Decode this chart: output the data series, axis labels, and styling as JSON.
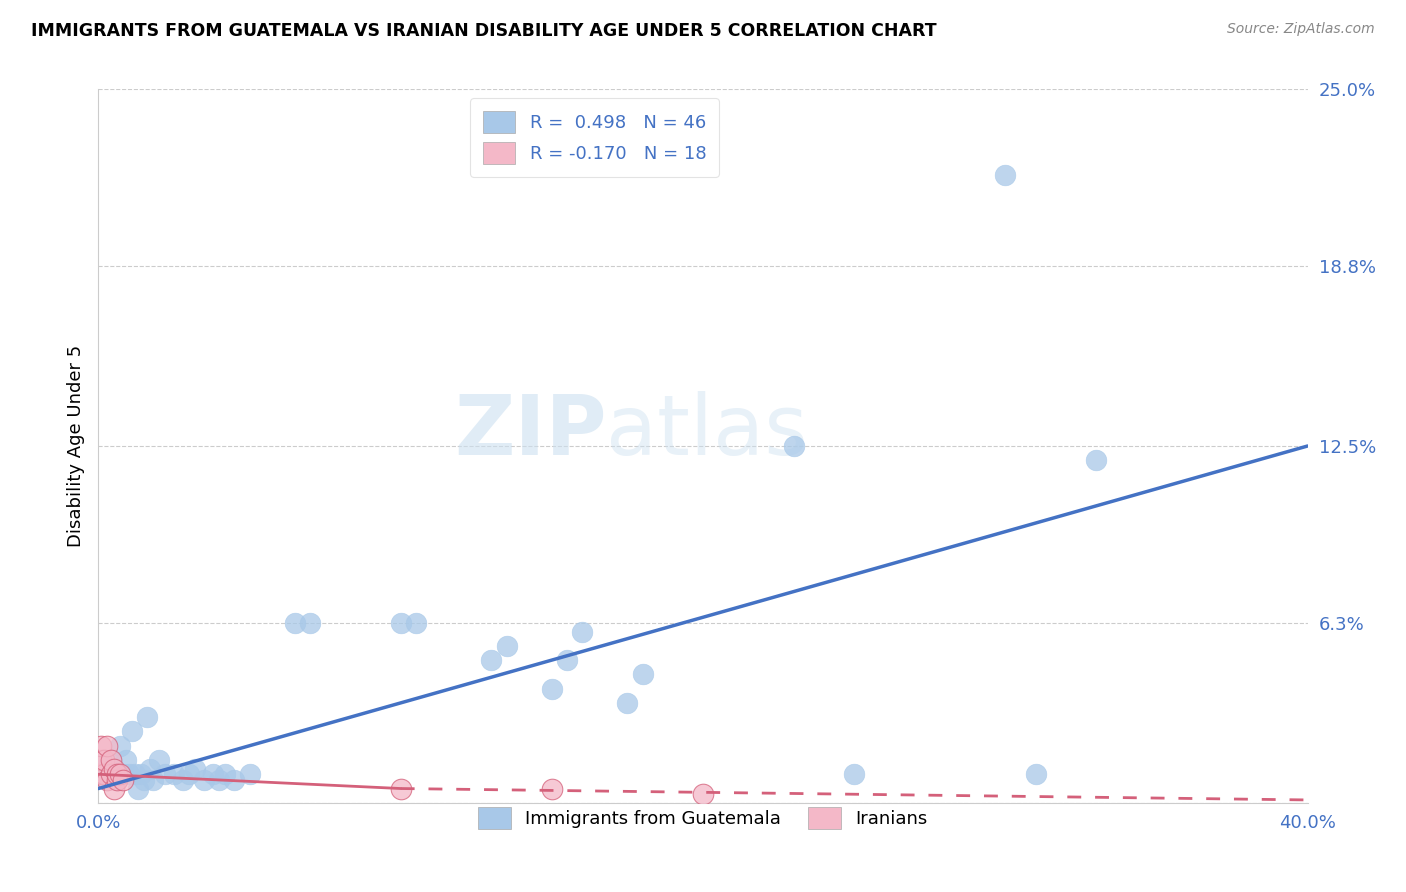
{
  "title": "IMMIGRANTS FROM GUATEMALA VS IRANIAN DISABILITY AGE UNDER 5 CORRELATION CHART",
  "source": "Source: ZipAtlas.com",
  "ylabel": "Disability Age Under 5",
  "xlim": [
    0.0,
    0.4
  ],
  "ylim": [
    0.0,
    0.25
  ],
  "ytick_positions": [
    0.0,
    0.063,
    0.125,
    0.188,
    0.25
  ],
  "ytick_labels": [
    "",
    "6.3%",
    "12.5%",
    "18.8%",
    "25.0%"
  ],
  "legend_r1": "R =  0.498",
  "legend_n1": "N = 46",
  "legend_r2": "R = -0.170",
  "legend_n2": "N = 18",
  "blue_color": "#a8c8e8",
  "blue_dark": "#4472c4",
  "pink_color": "#f4b8c8",
  "pink_dark": "#d4607a",
  "watermark_zip": "ZIP",
  "watermark_atlas": "atlas",
  "guatemala_points": [
    [
      0.001,
      0.01
    ],
    [
      0.002,
      0.012
    ],
    [
      0.003,
      0.008
    ],
    [
      0.004,
      0.015
    ],
    [
      0.005,
      0.01
    ],
    [
      0.006,
      0.008
    ],
    [
      0.007,
      0.02
    ],
    [
      0.008,
      0.01
    ],
    [
      0.009,
      0.015
    ],
    [
      0.01,
      0.01
    ],
    [
      0.011,
      0.025
    ],
    [
      0.012,
      0.01
    ],
    [
      0.013,
      0.005
    ],
    [
      0.014,
      0.01
    ],
    [
      0.015,
      0.008
    ],
    [
      0.016,
      0.03
    ],
    [
      0.017,
      0.012
    ],
    [
      0.018,
      0.008
    ],
    [
      0.02,
      0.015
    ],
    [
      0.022,
      0.01
    ],
    [
      0.025,
      0.01
    ],
    [
      0.028,
      0.008
    ],
    [
      0.03,
      0.01
    ],
    [
      0.032,
      0.012
    ],
    [
      0.035,
      0.008
    ],
    [
      0.038,
      0.01
    ],
    [
      0.04,
      0.008
    ],
    [
      0.042,
      0.01
    ],
    [
      0.045,
      0.008
    ],
    [
      0.05,
      0.01
    ],
    [
      0.065,
      0.063
    ],
    [
      0.07,
      0.063
    ],
    [
      0.1,
      0.063
    ],
    [
      0.105,
      0.063
    ],
    [
      0.13,
      0.05
    ],
    [
      0.135,
      0.055
    ],
    [
      0.15,
      0.04
    ],
    [
      0.155,
      0.05
    ],
    [
      0.16,
      0.06
    ],
    [
      0.175,
      0.035
    ],
    [
      0.18,
      0.045
    ],
    [
      0.23,
      0.125
    ],
    [
      0.25,
      0.01
    ],
    [
      0.3,
      0.22
    ],
    [
      0.31,
      0.01
    ],
    [
      0.33,
      0.12
    ]
  ],
  "iranian_points": [
    [
      0.0,
      0.01
    ],
    [
      0.001,
      0.015
    ],
    [
      0.001,
      0.02
    ],
    [
      0.002,
      0.01
    ],
    [
      0.002,
      0.015
    ],
    [
      0.003,
      0.008
    ],
    [
      0.003,
      0.02
    ],
    [
      0.004,
      0.01
    ],
    [
      0.004,
      0.015
    ],
    [
      0.005,
      0.005
    ],
    [
      0.005,
      0.012
    ],
    [
      0.006,
      0.008
    ],
    [
      0.006,
      0.01
    ],
    [
      0.007,
      0.01
    ],
    [
      0.008,
      0.008
    ],
    [
      0.1,
      0.005
    ],
    [
      0.15,
      0.005
    ],
    [
      0.2,
      0.003
    ]
  ],
  "blue_line": [
    [
      0.0,
      0.005
    ],
    [
      0.4,
      0.125
    ]
  ],
  "pink_line_solid": [
    [
      0.0,
      0.01
    ],
    [
      0.1,
      0.005
    ]
  ],
  "pink_line_dash": [
    [
      0.1,
      0.005
    ],
    [
      0.4,
      0.001
    ]
  ]
}
